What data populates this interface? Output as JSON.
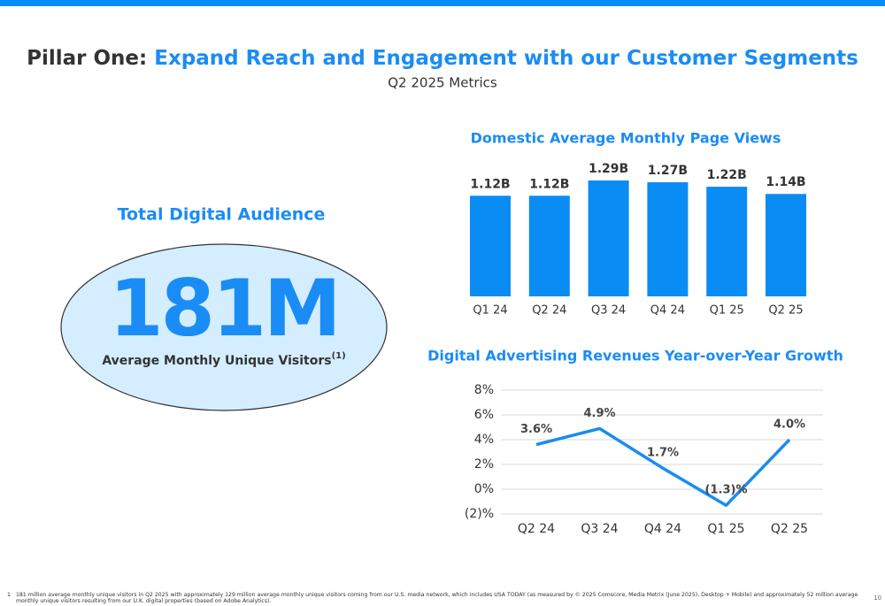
{
  "header": {
    "title_lead": "Pillar One:",
    "title_main": "Expand Reach and Engagement with our Customer Segments",
    "subtitle": "Q2 2025 Metrics"
  },
  "audience": {
    "heading": "Total Digital Audience",
    "figure": "181M",
    "caption": "Average Monthly Unique Visitors",
    "caption_note": "(1)"
  },
  "chart_data": [
    {
      "type": "bar",
      "title": "Domestic Average Monthly Page Views",
      "categories": [
        "Q1 24",
        "Q2 24",
        "Q3 24",
        "Q4 24",
        "Q1 25",
        "Q2 25"
      ],
      "values": [
        1.12,
        1.12,
        1.29,
        1.27,
        1.22,
        1.14
      ],
      "value_labels": [
        "1.12B",
        "1.12B",
        "1.29B",
        "1.27B",
        "1.22B",
        "1.14B"
      ],
      "color": "#0a8cf5"
    },
    {
      "type": "line",
      "title": "Digital Advertising Revenues Year-over-Year Growth",
      "categories": [
        "Q2 24",
        "Q3 24",
        "Q4 24",
        "Q1 25",
        "Q2 25"
      ],
      "values": [
        3.6,
        4.9,
        1.7,
        -1.3,
        4.0
      ],
      "value_labels": [
        "3.6%",
        "4.9%",
        "1.7%",
        "(1.3)%",
        "4.0%"
      ],
      "color": "#1a8cf0",
      "ylim": [
        -2,
        8
      ],
      "yticks": [
        {
          "value": -2,
          "label": "(2)%"
        },
        {
          "value": 0,
          "label": "0%"
        },
        {
          "value": 2,
          "label": "2%"
        },
        {
          "value": 4,
          "label": "4%"
        },
        {
          "value": 6,
          "label": "6%"
        },
        {
          "value": 8,
          "label": "8%"
        }
      ],
      "grid": true
    }
  ],
  "footnote": {
    "marker": "1",
    "text": "181 million average monthly unique visitors in Q2 2025 with approximately 129 million average monthly unique visitors coming from our U.S. media network, which includes USA TODAY (as measured by © 2025 Comscore, Media Metrix (June 2025), Desktop + Mobile) and approximately 52 million average monthly unique visitors resulting from our U.K. digital properties (based on Adobe Analytics)."
  },
  "page_number": "10"
}
